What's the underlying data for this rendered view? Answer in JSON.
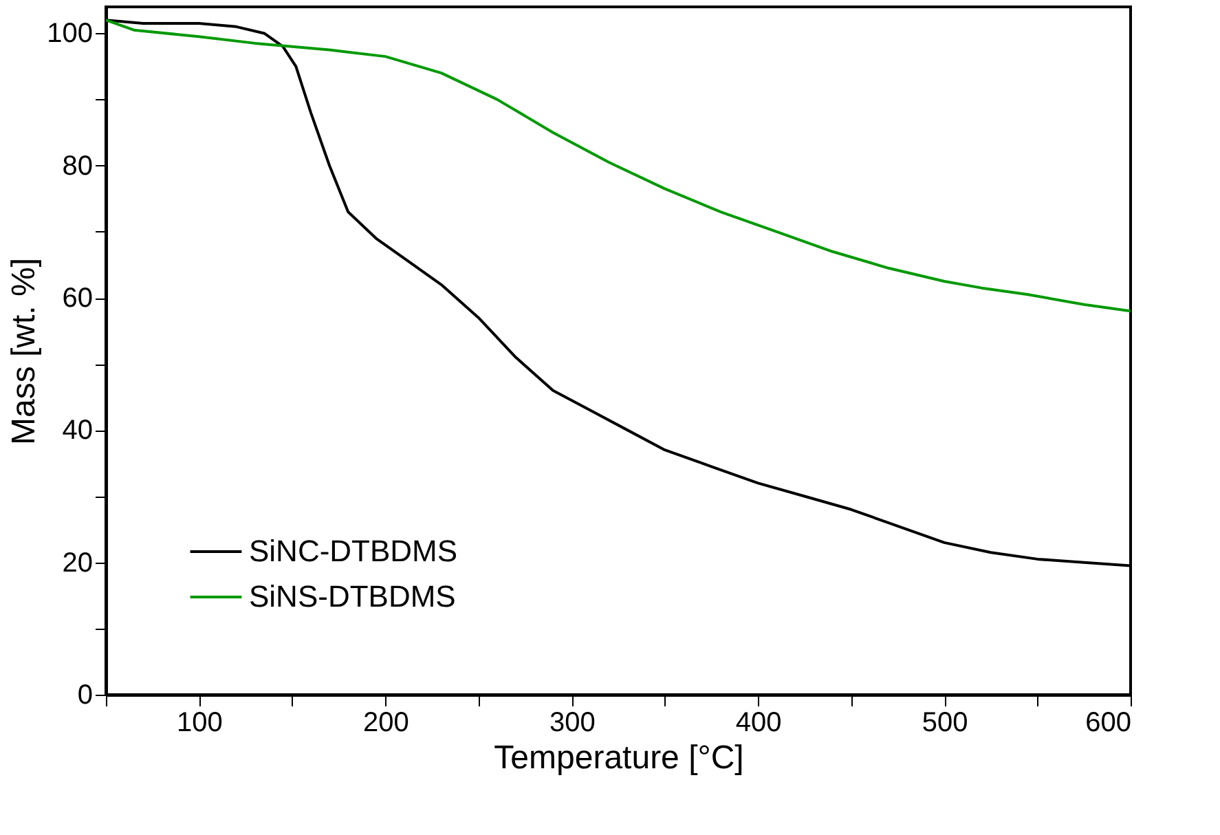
{
  "chart_data": {
    "type": "line",
    "xlabel": "Temperature [°C]",
    "ylabel": "Mass [wt. %]",
    "xlim": [
      50,
      600
    ],
    "ylim": [
      0,
      104
    ],
    "xticks": [
      {
        "value": 50,
        "label": null
      },
      100,
      {
        "value": 150,
        "label": null
      },
      200,
      {
        "value": 250,
        "label": null
      },
      300,
      {
        "value": 350,
        "label": null
      },
      400,
      {
        "value": 450,
        "label": null
      },
      500,
      {
        "value": 550,
        "label": null
      },
      600
    ],
    "yticks": [
      0,
      {
        "value": 10,
        "label": null
      },
      20,
      {
        "value": 30,
        "label": null
      },
      40,
      {
        "value": 50,
        "label": null
      },
      60,
      {
        "value": 70,
        "label": null
      },
      80,
      {
        "value": 90,
        "label": null
      },
      100
    ],
    "grid": false,
    "legend": "bottom left",
    "marker": "none",
    "line_style": "solid",
    "series": [
      {
        "name": "SiNC-DTBDMS",
        "color": "#000000",
        "x": [
          50,
          70,
          100,
          120,
          135,
          145,
          152,
          160,
          170,
          180,
          195,
          210,
          230,
          250,
          270,
          290,
          310,
          330,
          350,
          375,
          400,
          425,
          450,
          475,
          500,
          525,
          550,
          575,
          600
        ],
        "values": [
          102,
          101.5,
          101.5,
          101,
          100,
          98,
          95,
          88,
          80,
          73,
          69,
          66,
          62,
          57,
          51,
          46,
          43,
          40,
          37,
          34.5,
          32,
          30,
          28,
          25.5,
          23,
          21.5,
          20.5,
          20,
          19.5
        ]
      },
      {
        "name": "SiNS-DTBDMS",
        "color": "#009900",
        "x": [
          50,
          65,
          100,
          130,
          170,
          200,
          230,
          260,
          290,
          320,
          350,
          380,
          410,
          440,
          470,
          500,
          520,
          545,
          575,
          600
        ],
        "values": [
          102,
          100.5,
          99.5,
          98.5,
          97.5,
          96.5,
          94,
          90,
          85,
          80.5,
          76.5,
          73,
          70,
          67,
          64.5,
          62.5,
          61.5,
          60.5,
          59,
          58
        ]
      }
    ]
  }
}
